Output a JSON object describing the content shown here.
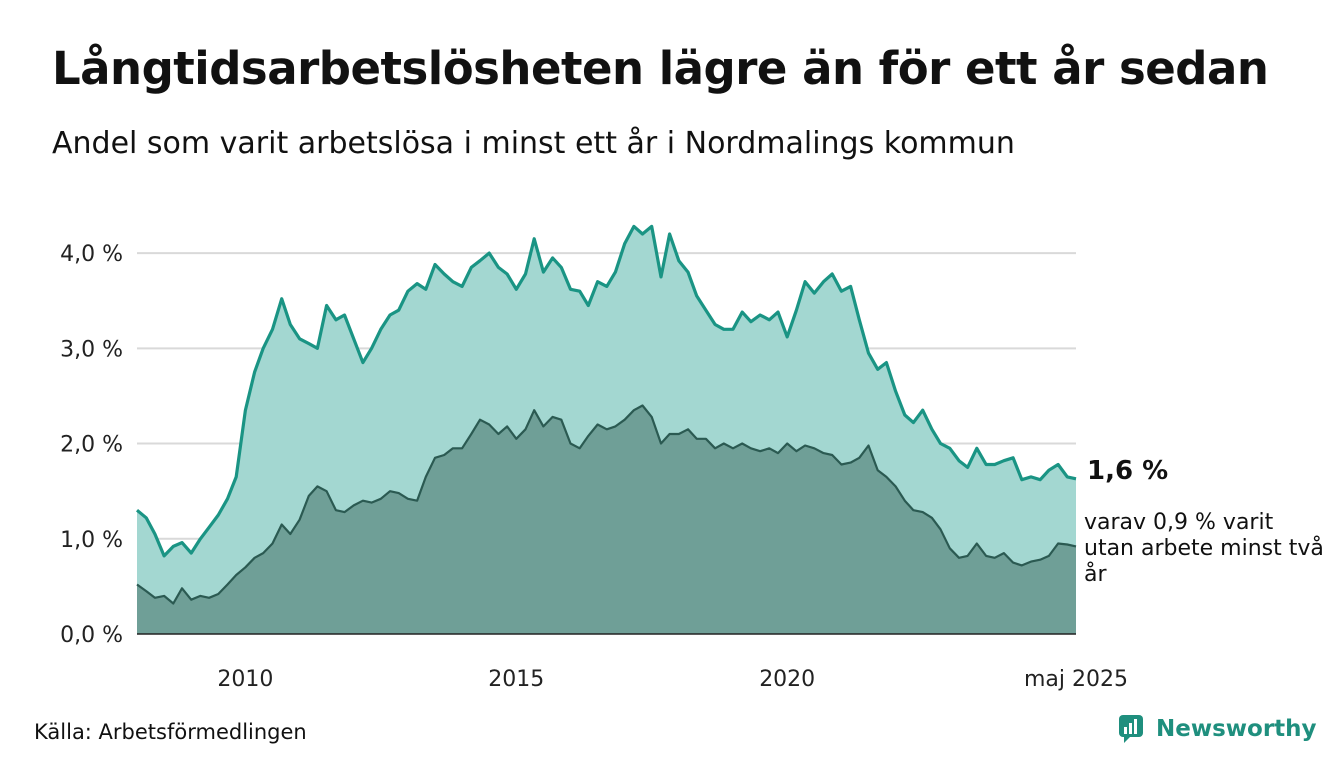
{
  "title": "Långtidsarbetslösheten lägre än för ett år sedan",
  "subtitle": "Andel som varit arbetslösa i minst ett år i Nordmalings kommun",
  "source": "Källa: Arbetsförmedlingen",
  "brand": "Newsworthy",
  "end_value_label": "1,6 %",
  "end_note": "varav 0,9 % varit utan arbete minst två år",
  "colors": {
    "series1_line": "#1a9484",
    "series1_fill": "#a3d7d1",
    "series2_line": "#2b5a52",
    "series2_fill": "#6f9f97",
    "gridline": "#d9d9d9",
    "axis": "#222222",
    "brand": "#1f8f7e"
  },
  "chart_data": {
    "type": "area",
    "x_start": "2008-01",
    "x_end": "2025-05",
    "x_ticks": [
      {
        "x": 2010.0,
        "label": "2010"
      },
      {
        "x": 2015.0,
        "label": "2015"
      },
      {
        "x": 2020.0,
        "label": "2020"
      },
      {
        "x": 2025.33,
        "label": "maj 2025"
      }
    ],
    "y_ticks": [
      {
        "y": 0.0,
        "label": "0,0 %"
      },
      {
        "y": 1.0,
        "label": "1,0 %"
      },
      {
        "y": 2.0,
        "label": "2,0 %"
      },
      {
        "y": 3.0,
        "label": "3,0 %"
      },
      {
        "y": 4.0,
        "label": "4,0 %"
      }
    ],
    "ylim": [
      0,
      4.4
    ],
    "grid": true,
    "series": [
      {
        "role": "minst ett år",
        "points": [
          [
            2008.0,
            1.3
          ],
          [
            2008.17,
            1.22
          ],
          [
            2008.33,
            1.05
          ],
          [
            2008.5,
            0.82
          ],
          [
            2008.67,
            0.92
          ],
          [
            2008.83,
            0.96
          ],
          [
            2009.0,
            0.85
          ],
          [
            2009.17,
            1.0
          ],
          [
            2009.33,
            1.12
          ],
          [
            2009.5,
            1.25
          ],
          [
            2009.67,
            1.42
          ],
          [
            2009.83,
            1.65
          ],
          [
            2010.0,
            2.35
          ],
          [
            2010.17,
            2.75
          ],
          [
            2010.33,
            3.0
          ],
          [
            2010.5,
            3.2
          ],
          [
            2010.67,
            3.52
          ],
          [
            2010.83,
            3.25
          ],
          [
            2011.0,
            3.1
          ],
          [
            2011.17,
            3.05
          ],
          [
            2011.33,
            3.0
          ],
          [
            2011.5,
            3.45
          ],
          [
            2011.67,
            3.3
          ],
          [
            2011.83,
            3.35
          ],
          [
            2012.0,
            3.1
          ],
          [
            2012.17,
            2.85
          ],
          [
            2012.33,
            3.0
          ],
          [
            2012.5,
            3.2
          ],
          [
            2012.67,
            3.35
          ],
          [
            2012.83,
            3.4
          ],
          [
            2013.0,
            3.6
          ],
          [
            2013.17,
            3.68
          ],
          [
            2013.33,
            3.62
          ],
          [
            2013.5,
            3.88
          ],
          [
            2013.67,
            3.78
          ],
          [
            2013.83,
            3.7
          ],
          [
            2014.0,
            3.65
          ],
          [
            2014.17,
            3.85
          ],
          [
            2014.33,
            3.92
          ],
          [
            2014.5,
            4.0
          ],
          [
            2014.67,
            3.85
          ],
          [
            2014.83,
            3.78
          ],
          [
            2015.0,
            3.62
          ],
          [
            2015.17,
            3.78
          ],
          [
            2015.33,
            4.15
          ],
          [
            2015.5,
            3.8
          ],
          [
            2015.67,
            3.95
          ],
          [
            2015.83,
            3.85
          ],
          [
            2016.0,
            3.62
          ],
          [
            2016.17,
            3.6
          ],
          [
            2016.33,
            3.45
          ],
          [
            2016.5,
            3.7
          ],
          [
            2016.67,
            3.65
          ],
          [
            2016.83,
            3.8
          ],
          [
            2017.0,
            4.1
          ],
          [
            2017.17,
            4.28
          ],
          [
            2017.33,
            4.2
          ],
          [
            2017.5,
            4.28
          ],
          [
            2017.67,
            3.75
          ],
          [
            2017.83,
            4.2
          ],
          [
            2018.0,
            3.92
          ],
          [
            2018.17,
            3.8
          ],
          [
            2018.33,
            3.55
          ],
          [
            2018.5,
            3.4
          ],
          [
            2018.67,
            3.25
          ],
          [
            2018.83,
            3.2
          ],
          [
            2019.0,
            3.2
          ],
          [
            2019.17,
            3.38
          ],
          [
            2019.33,
            3.28
          ],
          [
            2019.5,
            3.35
          ],
          [
            2019.67,
            3.3
          ],
          [
            2019.83,
            3.38
          ],
          [
            2020.0,
            3.12
          ],
          [
            2020.17,
            3.4
          ],
          [
            2020.33,
            3.7
          ],
          [
            2020.5,
            3.58
          ],
          [
            2020.67,
            3.7
          ],
          [
            2020.83,
            3.78
          ],
          [
            2021.0,
            3.6
          ],
          [
            2021.17,
            3.65
          ],
          [
            2021.33,
            3.3
          ],
          [
            2021.5,
            2.95
          ],
          [
            2021.67,
            2.78
          ],
          [
            2021.83,
            2.85
          ],
          [
            2022.0,
            2.55
          ],
          [
            2022.17,
            2.3
          ],
          [
            2022.33,
            2.22
          ],
          [
            2022.5,
            2.35
          ],
          [
            2022.67,
            2.15
          ],
          [
            2022.83,
            2.0
          ],
          [
            2023.0,
            1.95
          ],
          [
            2023.17,
            1.82
          ],
          [
            2023.33,
            1.75
          ],
          [
            2023.5,
            1.95
          ],
          [
            2023.67,
            1.78
          ],
          [
            2023.83,
            1.78
          ],
          [
            2024.0,
            1.82
          ],
          [
            2024.17,
            1.85
          ],
          [
            2024.33,
            1.62
          ],
          [
            2024.5,
            1.65
          ],
          [
            2024.67,
            1.62
          ],
          [
            2024.83,
            1.72
          ],
          [
            2025.0,
            1.78
          ],
          [
            2025.17,
            1.65
          ],
          [
            2025.33,
            1.63
          ]
        ]
      },
      {
        "role": "minst två år",
        "points": [
          [
            2008.0,
            0.52
          ],
          [
            2008.17,
            0.45
          ],
          [
            2008.33,
            0.38
          ],
          [
            2008.5,
            0.4
          ],
          [
            2008.67,
            0.32
          ],
          [
            2008.83,
            0.48
          ],
          [
            2009.0,
            0.36
          ],
          [
            2009.17,
            0.4
          ],
          [
            2009.33,
            0.38
          ],
          [
            2009.5,
            0.42
          ],
          [
            2009.67,
            0.52
          ],
          [
            2009.83,
            0.62
          ],
          [
            2010.0,
            0.7
          ],
          [
            2010.17,
            0.8
          ],
          [
            2010.33,
            0.85
          ],
          [
            2010.5,
            0.95
          ],
          [
            2010.67,
            1.15
          ],
          [
            2010.83,
            1.05
          ],
          [
            2011.0,
            1.2
          ],
          [
            2011.17,
            1.45
          ],
          [
            2011.33,
            1.55
          ],
          [
            2011.5,
            1.5
          ],
          [
            2011.67,
            1.3
          ],
          [
            2011.83,
            1.28
          ],
          [
            2012.0,
            1.35
          ],
          [
            2012.17,
            1.4
          ],
          [
            2012.33,
            1.38
          ],
          [
            2012.5,
            1.42
          ],
          [
            2012.67,
            1.5
          ],
          [
            2012.83,
            1.48
          ],
          [
            2013.0,
            1.42
          ],
          [
            2013.17,
            1.4
          ],
          [
            2013.33,
            1.65
          ],
          [
            2013.5,
            1.85
          ],
          [
            2013.67,
            1.88
          ],
          [
            2013.83,
            1.95
          ],
          [
            2014.0,
            1.95
          ],
          [
            2014.17,
            2.1
          ],
          [
            2014.33,
            2.25
          ],
          [
            2014.5,
            2.2
          ],
          [
            2014.67,
            2.1
          ],
          [
            2014.83,
            2.18
          ],
          [
            2015.0,
            2.05
          ],
          [
            2015.17,
            2.15
          ],
          [
            2015.33,
            2.35
          ],
          [
            2015.5,
            2.18
          ],
          [
            2015.67,
            2.28
          ],
          [
            2015.83,
            2.25
          ],
          [
            2016.0,
            2.0
          ],
          [
            2016.17,
            1.95
          ],
          [
            2016.33,
            2.08
          ],
          [
            2016.5,
            2.2
          ],
          [
            2016.67,
            2.15
          ],
          [
            2016.83,
            2.18
          ],
          [
            2017.0,
            2.25
          ],
          [
            2017.17,
            2.35
          ],
          [
            2017.33,
            2.4
          ],
          [
            2017.5,
            2.28
          ],
          [
            2017.67,
            2.0
          ],
          [
            2017.83,
            2.1
          ],
          [
            2018.0,
            2.1
          ],
          [
            2018.17,
            2.15
          ],
          [
            2018.33,
            2.05
          ],
          [
            2018.5,
            2.05
          ],
          [
            2018.67,
            1.95
          ],
          [
            2018.83,
            2.0
          ],
          [
            2019.0,
            1.95
          ],
          [
            2019.17,
            2.0
          ],
          [
            2019.33,
            1.95
          ],
          [
            2019.5,
            1.92
          ],
          [
            2019.67,
            1.95
          ],
          [
            2019.83,
            1.9
          ],
          [
            2020.0,
            2.0
          ],
          [
            2020.17,
            1.92
          ],
          [
            2020.33,
            1.98
          ],
          [
            2020.5,
            1.95
          ],
          [
            2020.67,
            1.9
          ],
          [
            2020.83,
            1.88
          ],
          [
            2021.0,
            1.78
          ],
          [
            2021.17,
            1.8
          ],
          [
            2021.33,
            1.85
          ],
          [
            2021.5,
            1.98
          ],
          [
            2021.67,
            1.72
          ],
          [
            2021.83,
            1.65
          ],
          [
            2022.0,
            1.55
          ],
          [
            2022.17,
            1.4
          ],
          [
            2022.33,
            1.3
          ],
          [
            2022.5,
            1.28
          ],
          [
            2022.67,
            1.22
          ],
          [
            2022.83,
            1.1
          ],
          [
            2023.0,
            0.9
          ],
          [
            2023.17,
            0.8
          ],
          [
            2023.33,
            0.82
          ],
          [
            2023.5,
            0.95
          ],
          [
            2023.67,
            0.82
          ],
          [
            2023.83,
            0.8
          ],
          [
            2024.0,
            0.85
          ],
          [
            2024.17,
            0.75
          ],
          [
            2024.33,
            0.72
          ],
          [
            2024.5,
            0.76
          ],
          [
            2024.67,
            0.78
          ],
          [
            2024.83,
            0.82
          ],
          [
            2025.0,
            0.95
          ],
          [
            2025.17,
            0.94
          ],
          [
            2025.33,
            0.92
          ]
        ]
      }
    ]
  }
}
